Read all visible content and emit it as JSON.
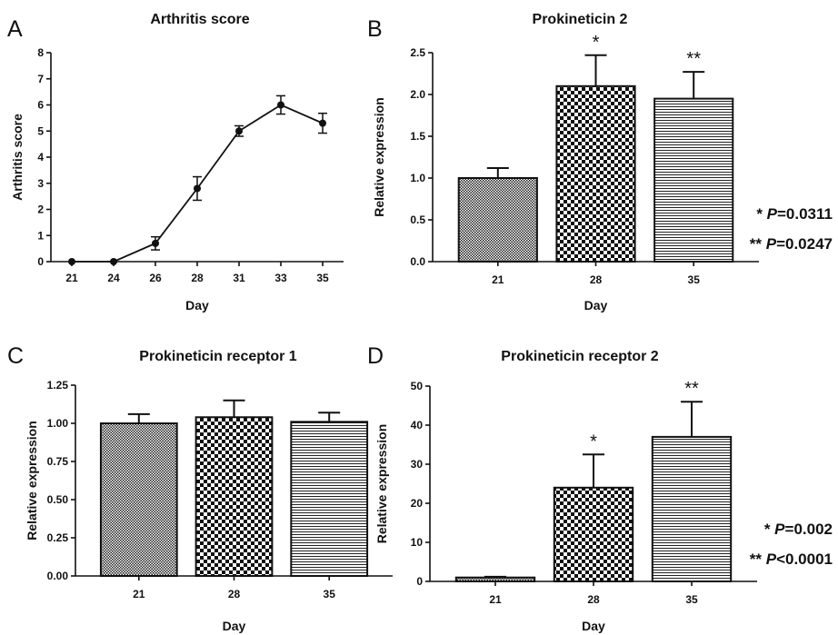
{
  "chart_data": [
    {
      "panel": "A",
      "type": "line",
      "title": "Arthritis score",
      "xlabel": "Day",
      "ylabel": "Arthritis score",
      "categories": [
        "21",
        "24",
        "26",
        "28",
        "31",
        "33",
        "35"
      ],
      "values": [
        0,
        0,
        0.7,
        2.8,
        5.0,
        6.0,
        5.3
      ],
      "errors": [
        0,
        0,
        0.25,
        0.45,
        0.2,
        0.35,
        0.38
      ],
      "ylim": [
        0,
        8
      ],
      "yticks": [
        "0",
        "1",
        "2",
        "3",
        "4",
        "5",
        "6",
        "7",
        "8"
      ]
    },
    {
      "panel": "B",
      "type": "bar",
      "title": "Prokineticin 2",
      "xlabel": "Day",
      "ylabel": "Relative expression",
      "categories": [
        "21",
        "28",
        "35"
      ],
      "values": [
        1.0,
        2.1,
        1.95
      ],
      "errors": [
        0.12,
        0.37,
        0.32
      ],
      "significance": [
        "",
        "*",
        "**"
      ],
      "ylim": [
        0,
        2.5
      ],
      "yticks": [
        "0.0",
        "0.5",
        "1.0",
        "1.5",
        "2.0",
        "2.5"
      ],
      "pvalues": [
        {
          "stars": "* ",
          "p": "P",
          "rest": "=0.0311"
        },
        {
          "stars": "** ",
          "p": "P",
          "rest": "=0.0247"
        }
      ]
    },
    {
      "panel": "C",
      "type": "bar",
      "title": "Prokineticin receptor 1",
      "xlabel": "Day",
      "ylabel": "Relative expression",
      "categories": [
        "21",
        "28",
        "35"
      ],
      "values": [
        1.0,
        1.04,
        1.01
      ],
      "errors": [
        0.06,
        0.11,
        0.06
      ],
      "significance": [
        "",
        "",
        ""
      ],
      "ylim": [
        0,
        1.25
      ],
      "yticks": [
        "0.00",
        "0.25",
        "0.50",
        "0.75",
        "1.00",
        "1.25"
      ],
      "pvalues": []
    },
    {
      "panel": "D",
      "type": "bar",
      "title": "Prokineticin receptor 2",
      "xlabel": "Day",
      "ylabel": "Relative expression",
      "categories": [
        "21",
        "28",
        "35"
      ],
      "values": [
        1.0,
        24.0,
        37.0
      ],
      "errors": [
        0.2,
        8.5,
        9.0
      ],
      "significance": [
        "",
        "*",
        "**"
      ],
      "ylim": [
        0,
        50
      ],
      "yticks": [
        "0",
        "10",
        "20",
        "30",
        "40",
        "50"
      ],
      "pvalues": [
        {
          "stars": "* ",
          "p": "P",
          "rest": "=0.002"
        },
        {
          "stars": "** ",
          "p": "P",
          "rest": "<0.0001"
        }
      ]
    }
  ]
}
